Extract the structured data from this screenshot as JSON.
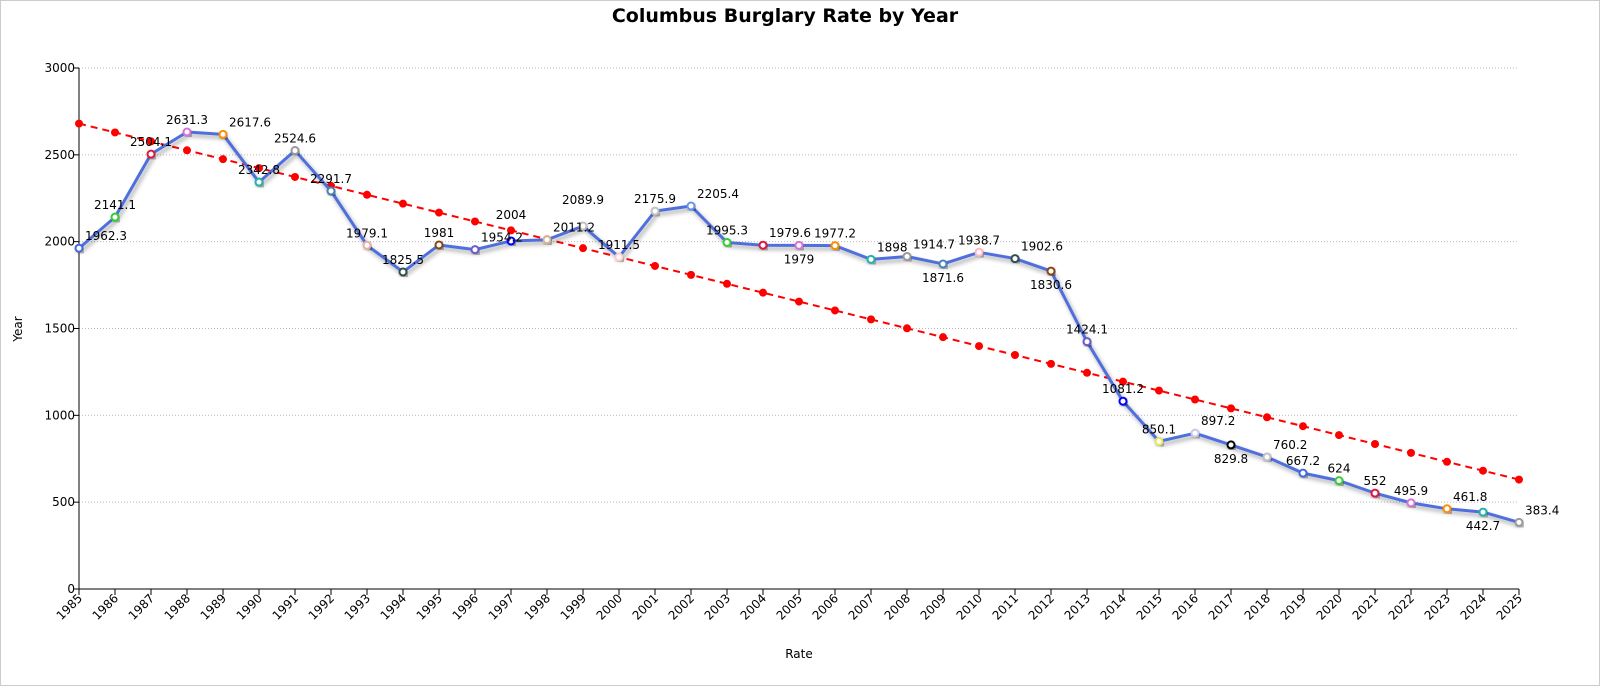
{
  "chart_data": {
    "type": "line",
    "title": "Columbus Burglary Rate by Year",
    "xlabel": "Rate",
    "ylabel": "Year",
    "ylim": [
      0,
      3000
    ],
    "yticks": [
      0,
      500,
      1000,
      1500,
      2000,
      2500,
      3000
    ],
    "grid": "horizontal dotted",
    "x": [
      1985,
      1986,
      1987,
      1988,
      1989,
      1990,
      1991,
      1992,
      1993,
      1994,
      1995,
      1996,
      1997,
      1998,
      1999,
      2000,
      2001,
      2002,
      2003,
      2004,
      2005,
      2006,
      2007,
      2008,
      2009,
      2010,
      2011,
      2012,
      2013,
      2014,
      2015,
      2016,
      2017,
      2018,
      2019,
      2020,
      2021,
      2022,
      2023,
      2024,
      2025
    ],
    "series": [
      {
        "values": [
          1962.3,
          2141.1,
          2504.1,
          2631.3,
          2617.6,
          2342.8,
          2524.6,
          2291.7,
          1979.1,
          1825.5,
          1981,
          1954.2,
          2004,
          2011.2,
          2089.9,
          1911.5,
          2175.9,
          2205.4,
          1995.3,
          1979.6,
          1979,
          1977.2,
          1898,
          1914.7,
          1871.6,
          1938.7,
          1902.6,
          1830.6,
          1424.1,
          1081.2,
          850.1,
          897.2,
          829.8,
          760.2,
          667.2,
          624,
          552,
          495.9,
          461.8,
          442.7,
          383.4
        ],
        "line_color": "#4f6fdc"
      }
    ],
    "trend_line": {
      "style": "dashed",
      "color": "#ff0000",
      "x": [
        1985,
        2025
      ],
      "y": [
        2680,
        630
      ]
    },
    "marker_colors": [
      "#4169e1",
      "#32cd32",
      "#dc143c",
      "#da70d6",
      "#ff8c00",
      "#20b2aa",
      "#999999",
      "#4682b4",
      "#e6b0a0",
      "#2f4f4f",
      "#8b4513",
      "#6a5acd",
      "#0000ff",
      "#d2b48c",
      "#c0c0c0",
      "#ffcccc",
      "#c0c0c0",
      "#6495ed",
      "#32cd32",
      "#dc143c",
      "#da70d6",
      "#ff8c00",
      "#20b2aa",
      "#999999",
      "#4682b4",
      "#ffb6c1",
      "#2f4f4f",
      "#8b4513",
      "#6a5acd",
      "#0000ff",
      "#e6e65a",
      "#c8c8e0",
      "#000000",
      "#c0c0c0",
      "#4169e1",
      "#32cd32",
      "#dc143c",
      "#da70d6",
      "#ff8c00",
      "#20b2aa",
      "#999999"
    ]
  }
}
